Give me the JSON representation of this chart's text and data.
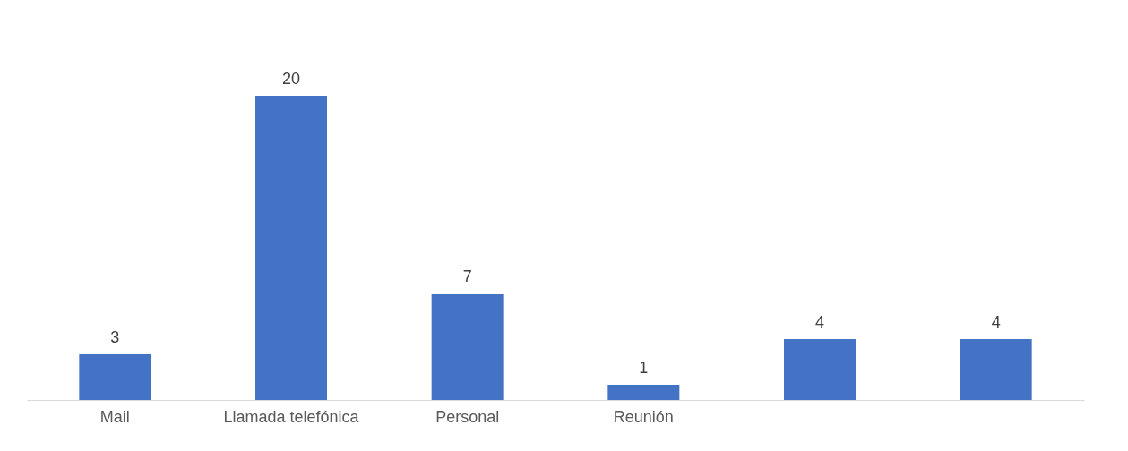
{
  "chart_data": {
    "type": "bar",
    "categories": [
      "Mail",
      "Llamada telefónica",
      "Personal",
      "Reunión",
      null,
      null
    ],
    "values": [
      3,
      20,
      7,
      1,
      4,
      4
    ],
    "color": "#4472c4",
    "data_labels": true
  }
}
